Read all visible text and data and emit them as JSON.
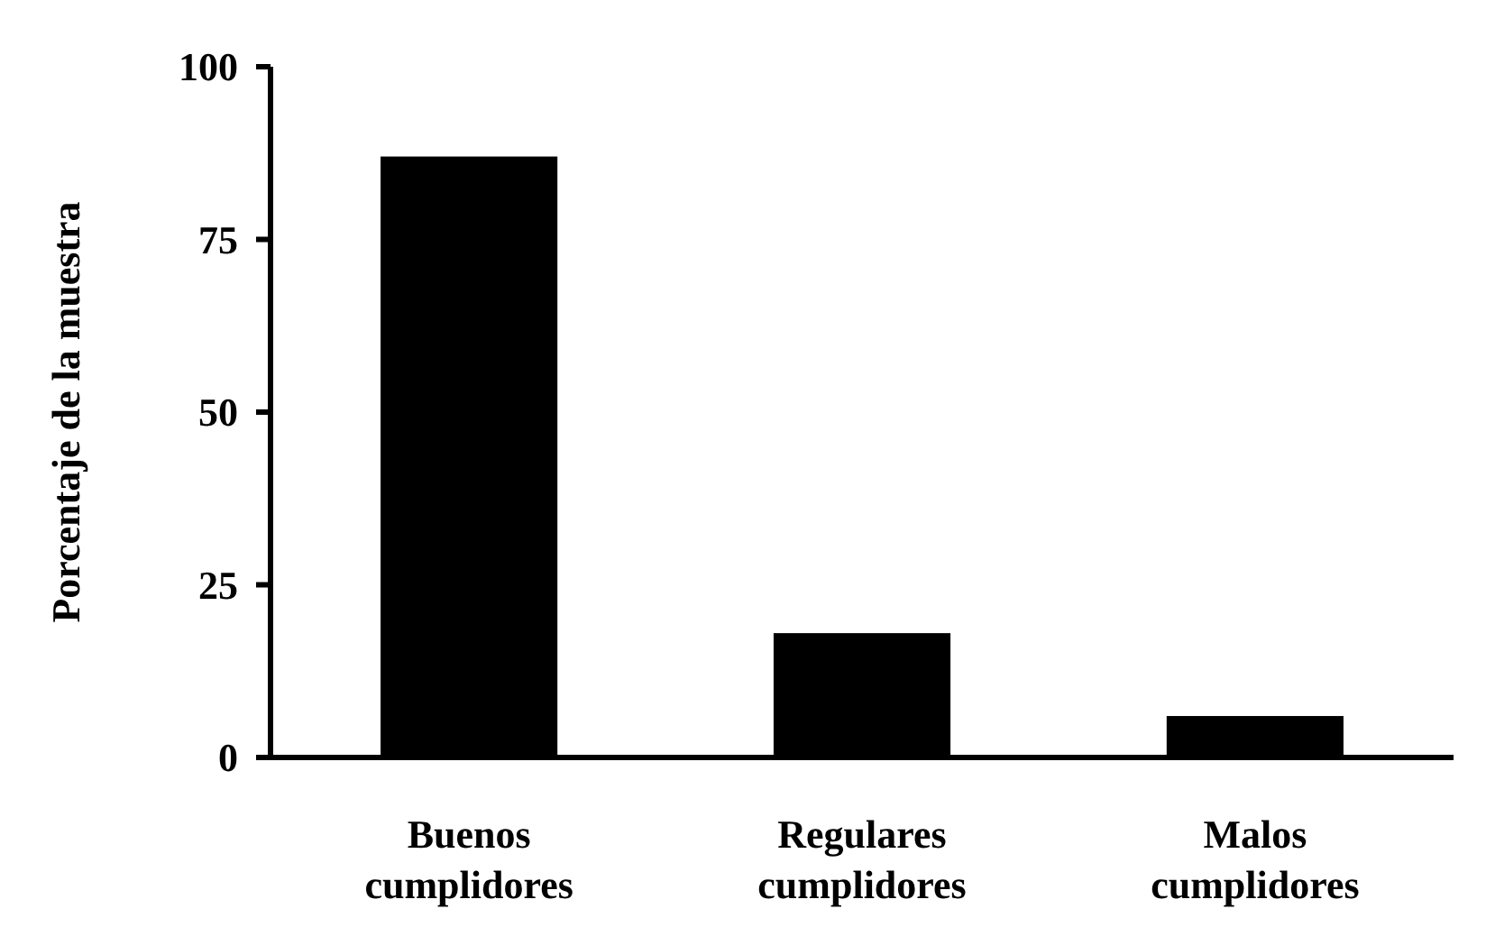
{
  "chart_data": {
    "type": "bar",
    "ylabel": "Porcentaje de la muestra",
    "categories": [
      "Buenos cumplidores",
      "Regulares cumplidores",
      "Malos cumplidores"
    ],
    "values": [
      87,
      18,
      6
    ],
    "color": "#000000",
    "ylim": [
      0,
      100
    ],
    "yticks": [
      0,
      25,
      50,
      75,
      100
    ],
    "grid": false
  }
}
